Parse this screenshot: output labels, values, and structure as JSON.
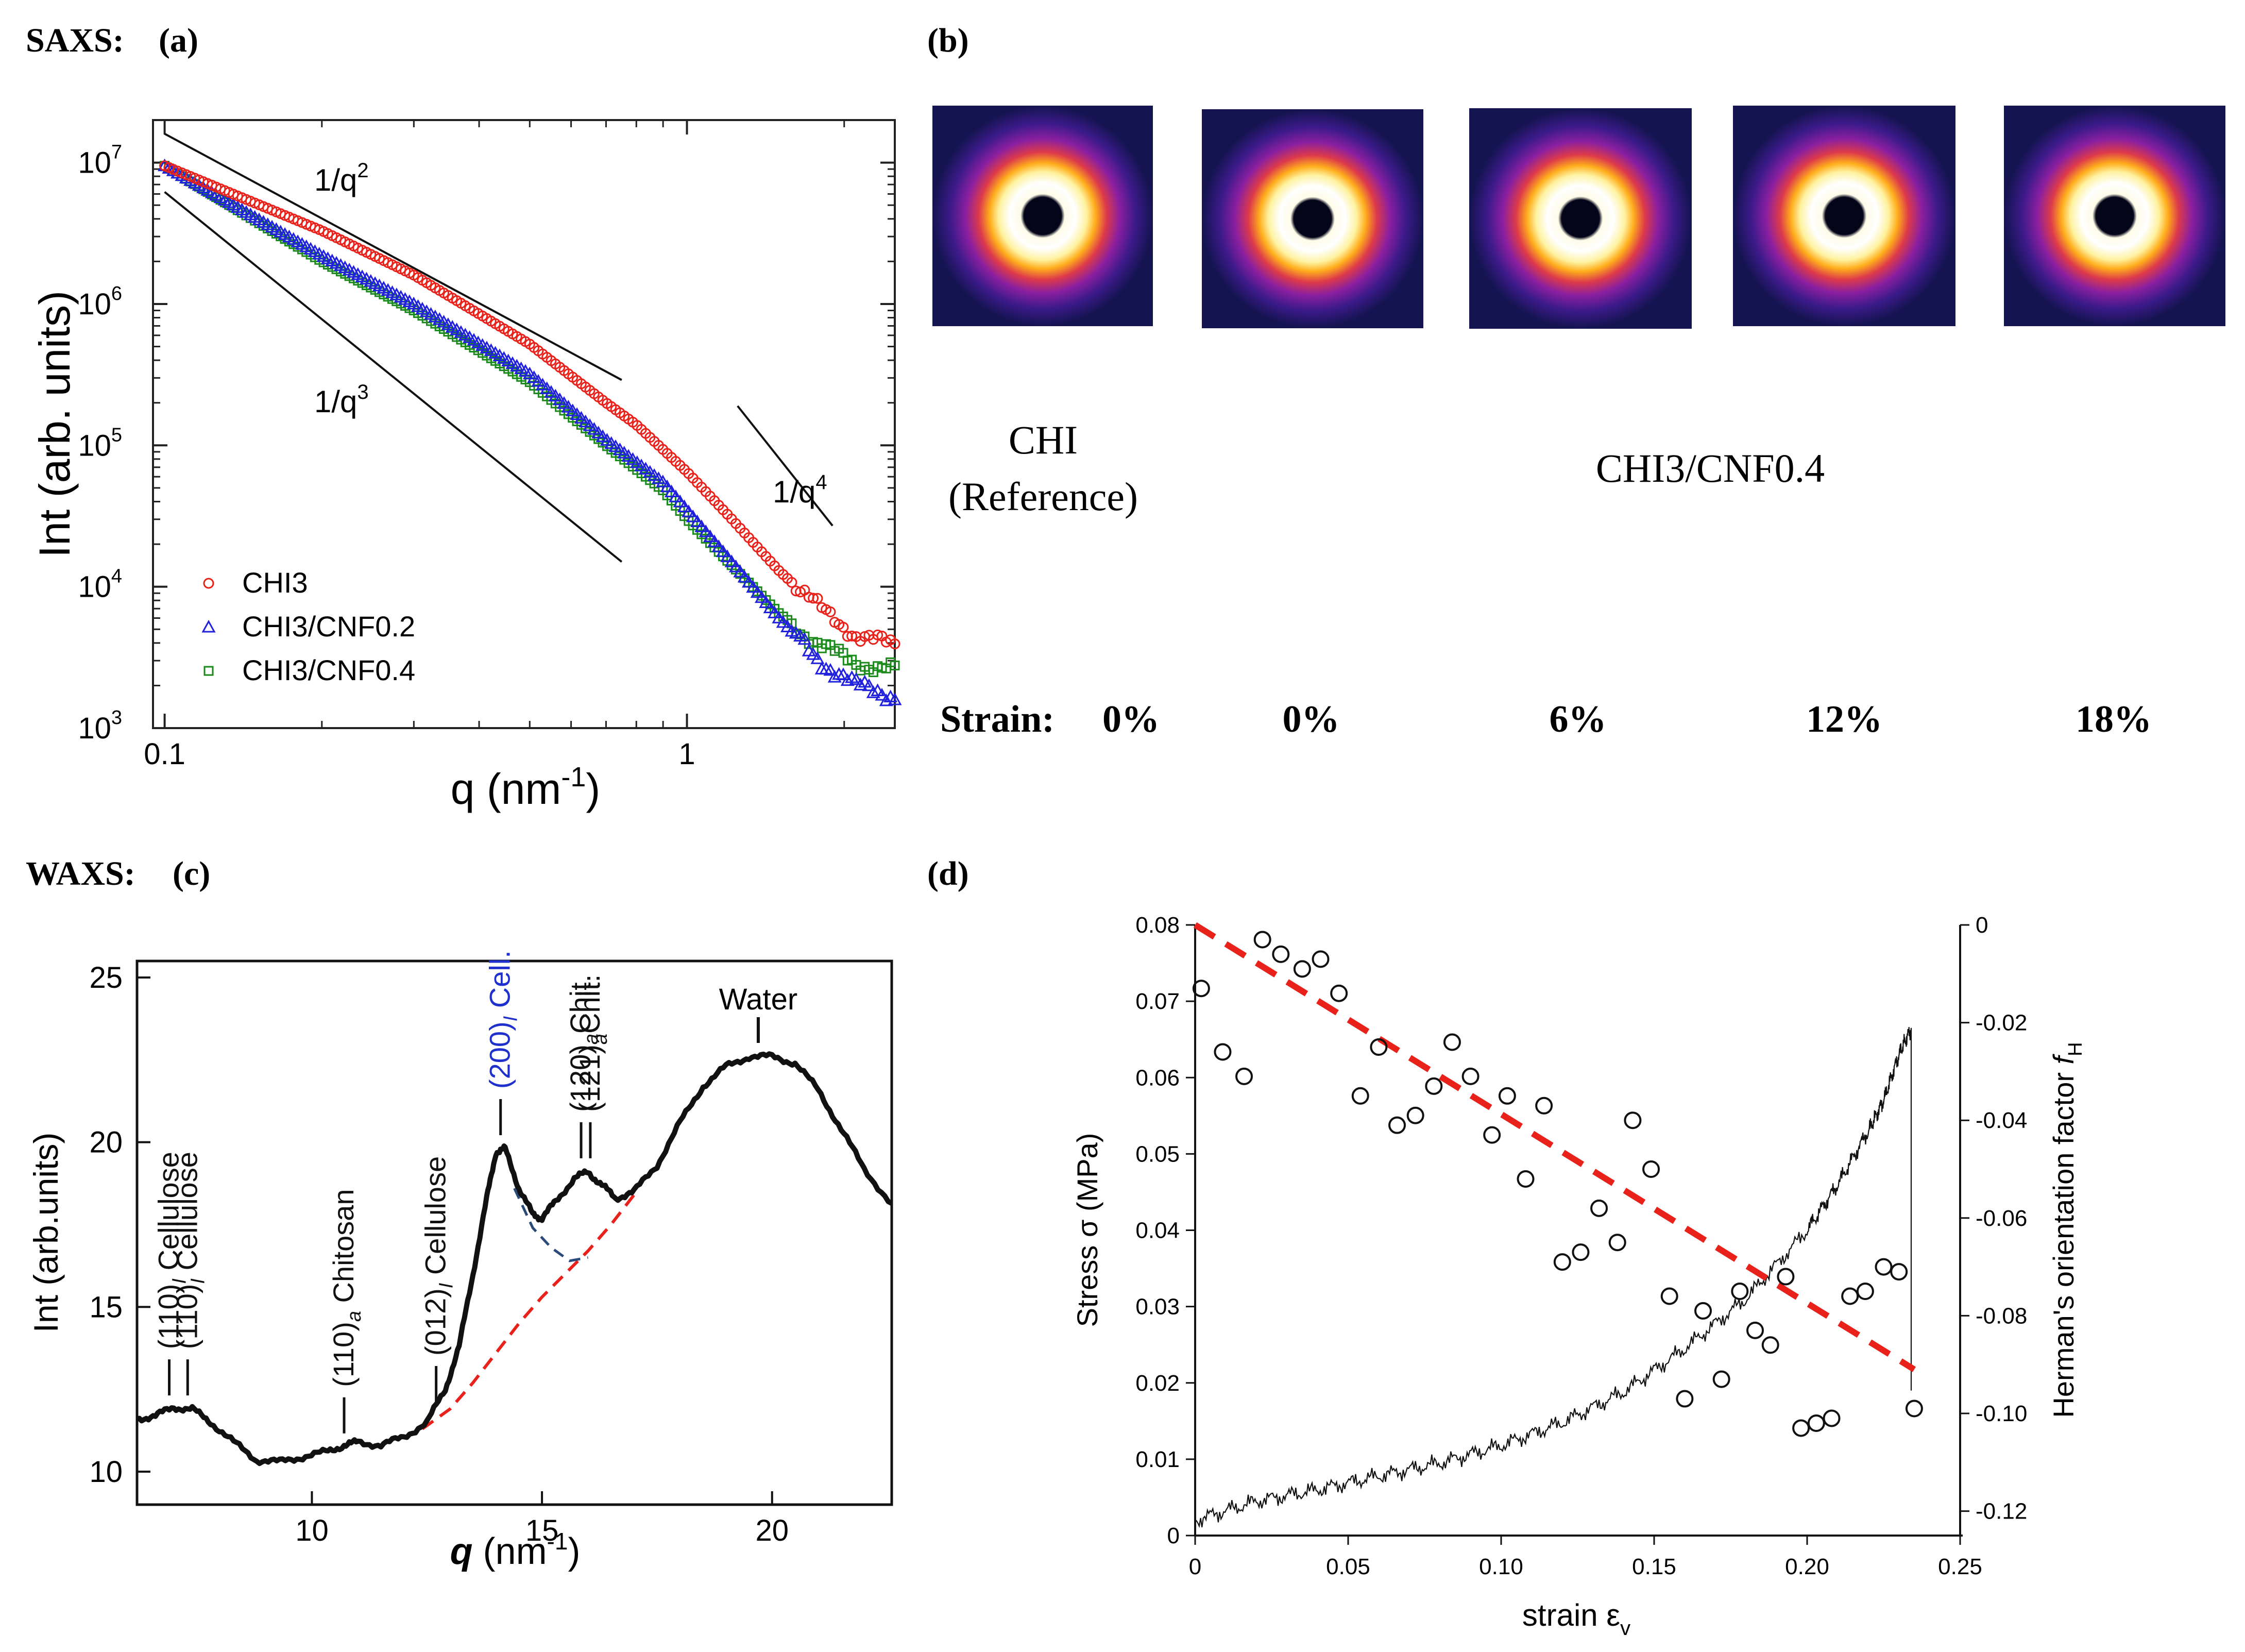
{
  "panels": {
    "saxs_heading": "SAXS:",
    "a": "(a)",
    "b": "(b)",
    "waxs_heading": "WAXS:",
    "c": "(c)",
    "d": "(d)"
  },
  "colors": {
    "chi3": "#e8221a",
    "cnf02": "#2020dd",
    "cnf04": "#1a8a1a",
    "red_dash": "#e8221a",
    "blue_dash": "#2a4a7a"
  },
  "chart_data": [
    {
      "id": "saxs",
      "type": "scatter",
      "xscale": "log",
      "yscale": "log",
      "xlim": [
        0.095,
        2.5
      ],
      "ylim": [
        1000,
        20000000
      ],
      "xlabel": "q (nm",
      "xlabel_sup": "-1",
      "xlabel_end": ")",
      "ylabel": "Int (arb. units)",
      "x_ticks": [
        {
          "v": 0.1,
          "label": "0.1"
        },
        {
          "v": 1,
          "label": "1"
        }
      ],
      "y_ticks": [
        {
          "v": 1000,
          "base": "10",
          "exp": "3"
        },
        {
          "v": 10000,
          "base": "10",
          "exp": "4"
        },
        {
          "v": 100000,
          "base": "10",
          "exp": "5"
        },
        {
          "v": 1000000,
          "base": "10",
          "exp": "6"
        },
        {
          "v": 10000000,
          "base": "10",
          "exp": "7"
        }
      ],
      "series": [
        {
          "name": "CHI3",
          "marker": "circle",
          "points": [
            [
              0.1,
              9500000.0
            ],
            [
              0.2,
              3300000.0
            ],
            [
              0.3,
              1600000.0
            ],
            [
              0.5,
              520000.0
            ],
            [
              0.7,
              200000.0
            ],
            [
              0.8,
              140000.0
            ],
            [
              1.0,
              65000.0
            ],
            [
              1.2,
              32000.0
            ],
            [
              1.5,
              13000.0
            ],
            [
              1.8,
              7000.0
            ],
            [
              2.1,
              4600.0
            ],
            [
              2.5,
              3800.0
            ]
          ]
        },
        {
          "name": "CHI3/CNF0.2",
          "marker": "triangle",
          "points": [
            [
              0.1,
              9500000.0
            ],
            [
              0.2,
              2200000.0
            ],
            [
              0.3,
              1000000.0
            ],
            [
              0.5,
              320000.0
            ],
            [
              0.7,
              110000.0
            ],
            [
              0.9,
              55000.0
            ],
            [
              1.0,
              35000.0
            ],
            [
              1.2,
              16000.0
            ],
            [
              1.5,
              6000.0
            ],
            [
              1.8,
              3000.0
            ],
            [
              2.1,
              2000.0
            ],
            [
              2.5,
              1700.0
            ]
          ]
        },
        {
          "name": "CHI3/CNF0.4",
          "marker": "square",
          "points": [
            [
              0.1,
              9500000.0
            ],
            [
              0.2,
              2000000.0
            ],
            [
              0.3,
              900000.0
            ],
            [
              0.5,
              280000.0
            ],
            [
              0.7,
              100000.0
            ],
            [
              0.9,
              48000.0
            ],
            [
              1.0,
              30000.0
            ],
            [
              1.2,
              15000.0
            ],
            [
              1.5,
              6500.0
            ],
            [
              1.8,
              3800.0
            ],
            [
              2.1,
              2900.0
            ],
            [
              2.5,
              2600.0
            ]
          ]
        }
      ],
      "slope_lines": [
        {
          "label": "1/q",
          "sup": "2",
          "from": [
            0.1,
            16000000.0
          ],
          "to": [
            0.75,
            290000.0
          ]
        },
        {
          "label": "1/q",
          "sup": "3",
          "from": [
            0.1,
            6200000.0
          ],
          "to": [
            0.75,
            15000.0
          ]
        },
        {
          "label": "1/q",
          "sup": "4",
          "from": [
            1.25,
            190000.0
          ],
          "to": [
            1.9,
            27000.0
          ]
        }
      ],
      "legend": [
        "CHI3",
        "CHI3/CNF0.2",
        "CHI3/CNF0.4"
      ]
    },
    {
      "id": "waxs",
      "type": "line",
      "xlim": [
        6.2,
        22.6
      ],
      "ylim": [
        9,
        25.5
      ],
      "xlabel": "q",
      "xlabel_unit": " (nm",
      "xlabel_sup": "-1",
      "xlabel_end": ")",
      "ylabel": "Int (arb.units)",
      "x_ticks": [
        10,
        15,
        20
      ],
      "y_ticks": [
        10,
        15,
        20,
        25
      ],
      "series": [
        {
          "name": "data",
          "points": [
            [
              6.2,
              11.6
            ],
            [
              6.6,
              11.7
            ],
            [
              7.0,
              11.95
            ],
            [
              7.4,
              11.9
            ],
            [
              7.8,
              11.5
            ],
            [
              8.3,
              10.9
            ],
            [
              8.8,
              10.35
            ],
            [
              9.3,
              10.3
            ],
            [
              9.8,
              10.45
            ],
            [
              10.3,
              10.6
            ],
            [
              10.7,
              10.8
            ],
            [
              11.0,
              10.9
            ],
            [
              11.5,
              10.8
            ],
            [
              12.0,
              11.05
            ],
            [
              12.5,
              11.5
            ],
            [
              12.9,
              12.5
            ],
            [
              13.2,
              13.8
            ],
            [
              13.5,
              16.0
            ],
            [
              13.8,
              18.3
            ],
            [
              14.0,
              19.7
            ],
            [
              14.2,
              19.8
            ],
            [
              14.5,
              18.6
            ],
            [
              14.8,
              17.8
            ],
            [
              15.0,
              17.7
            ],
            [
              15.3,
              18.2
            ],
            [
              15.7,
              18.9
            ],
            [
              16.0,
              19.1
            ],
            [
              16.3,
              18.7
            ],
            [
              16.6,
              18.3
            ],
            [
              17.0,
              18.5
            ],
            [
              17.5,
              19.3
            ],
            [
              18.0,
              20.6
            ],
            [
              18.5,
              21.7
            ],
            [
              19.0,
              22.3
            ],
            [
              19.5,
              22.6
            ],
            [
              20.0,
              22.6
            ],
            [
              20.5,
              22.4
            ],
            [
              21.0,
              21.6
            ],
            [
              21.5,
              20.4
            ],
            [
              22.0,
              19.2
            ],
            [
              22.6,
              18.1
            ]
          ]
        }
      ],
      "fits": [
        {
          "name": "red-baseline",
          "points": [
            [
              12.4,
              11.3
            ],
            [
              13.0,
              11.9
            ],
            [
              13.5,
              12.7
            ],
            [
              14.0,
              13.6
            ],
            [
              14.5,
              14.5
            ],
            [
              15.0,
              15.3
            ],
            [
              15.5,
              16.0
            ],
            [
              16.0,
              16.7
            ],
            [
              16.5,
              17.5
            ],
            [
              17.0,
              18.4
            ]
          ]
        },
        {
          "name": "blue-fit",
          "points": [
            [
              14.4,
              18.6
            ],
            [
              14.8,
              17.4
            ],
            [
              15.2,
              16.8
            ],
            [
              15.6,
              16.4
            ],
            [
              16.0,
              16.5
            ]
          ]
        }
      ],
      "peak_labels": [
        {
          "q": 6.9,
          "tick_y": 12.0,
          "main": "(110)",
          "sub": "I",
          "suffix": " Cellulose",
          "color": "#111111"
        },
        {
          "q": 7.3,
          "tick_y": 12.0,
          "main": "(110)",
          "sub": "I",
          "suffix": " Cellulose",
          "color": "#111111"
        },
        {
          "q": 10.7,
          "tick_y": 10.85,
          "main": "(110)",
          "sub": "a",
          "suffix": " Chitosan",
          "color": "#111111"
        },
        {
          "q": 12.7,
          "tick_y": 11.8,
          "main": "(012)",
          "sub": "I",
          "suffix": " Cellulose",
          "color": "#111111"
        },
        {
          "q": 14.1,
          "tick_y": 19.9,
          "main": "(200)",
          "sub": "I",
          "suffix": " Cell.",
          "color": "#2030cc"
        },
        {
          "q": 15.85,
          "tick_y": 19.2,
          "main": "(120)",
          "sub": "a",
          "suffix": "Chit.",
          "color": "#111111"
        },
        {
          "q": 16.05,
          "tick_y": 19.2,
          "main": "(121)",
          "sub": "a",
          "suffix": "Chit.",
          "color": "#111111"
        }
      ],
      "water_label": "Water",
      "water_q": 19.7
    },
    {
      "id": "stress",
      "type": "line",
      "xlim": [
        0,
        0.25
      ],
      "ylim_left": [
        0,
        0.08
      ],
      "ylim_right": [
        -0.125,
        0
      ],
      "xlabel": "strain ε",
      "xlabel_sub": "v",
      "ylabel_left": "Stress σ (MPa)",
      "ylabel_right": "Herman's orientation factor ",
      "ylabel_right_f": "f",
      "ylabel_right_sub": "H",
      "x_ticks": [
        {
          "v": 0,
          "l": "0"
        },
        {
          "v": 0.05,
          "l": "0.05"
        },
        {
          "v": 0.1,
          "l": "0.10"
        },
        {
          "v": 0.15,
          "l": "0.15"
        },
        {
          "v": 0.2,
          "l": "0.20"
        },
        {
          "v": 0.25,
          "l": "0.25"
        }
      ],
      "y_ticks_left": [
        {
          "v": 0,
          "l": "0"
        },
        {
          "v": 0.01,
          "l": "0.01"
        },
        {
          "v": 0.02,
          "l": "0.02"
        },
        {
          "v": 0.03,
          "l": "0.03"
        },
        {
          "v": 0.04,
          "l": "0.04"
        },
        {
          "v": 0.05,
          "l": "0.05"
        },
        {
          "v": 0.06,
          "l": "0.06"
        },
        {
          "v": 0.07,
          "l": "0.07"
        },
        {
          "v": 0.08,
          "l": "0.08"
        }
      ],
      "y_ticks_right": [
        {
          "v": 0,
          "l": "0"
        },
        {
          "v": -0.02,
          "l": "-0.02"
        },
        {
          "v": -0.04,
          "l": "-0.04"
        },
        {
          "v": -0.06,
          "l": "-0.06"
        },
        {
          "v": -0.08,
          "l": "-0.08"
        },
        {
          "v": -0.1,
          "l": "-0.10"
        },
        {
          "v": -0.12,
          "l": "-0.12"
        }
      ],
      "stress_curve": [
        [
          0,
          0.002
        ],
        [
          0.02,
          0.0045
        ],
        [
          0.04,
          0.006
        ],
        [
          0.06,
          0.0078
        ],
        [
          0.08,
          0.0095
        ],
        [
          0.1,
          0.0118
        ],
        [
          0.12,
          0.0148
        ],
        [
          0.14,
          0.0188
        ],
        [
          0.16,
          0.0245
        ],
        [
          0.18,
          0.031
        ],
        [
          0.2,
          0.04
        ],
        [
          0.21,
          0.046
        ],
        [
          0.22,
          0.053
        ],
        [
          0.225,
          0.057
        ],
        [
          0.23,
          0.063
        ],
        [
          0.234,
          0.0665
        ],
        [
          0.234,
          0.019
        ]
      ],
      "herman_points": [
        [
          0.002,
          -0.013
        ],
        [
          0.009,
          -0.026
        ],
        [
          0.016,
          -0.031
        ],
        [
          0.022,
          -0.003
        ],
        [
          0.028,
          -0.006
        ],
        [
          0.035,
          -0.009
        ],
        [
          0.041,
          -0.007
        ],
        [
          0.047,
          -0.014
        ],
        [
          0.054,
          -0.035
        ],
        [
          0.06,
          -0.025
        ],
        [
          0.066,
          -0.041
        ],
        [
          0.072,
          -0.039
        ],
        [
          0.078,
          -0.033
        ],
        [
          0.084,
          -0.024
        ],
        [
          0.09,
          -0.031
        ],
        [
          0.097,
          -0.043
        ],
        [
          0.102,
          -0.035
        ],
        [
          0.108,
          -0.052
        ],
        [
          0.114,
          -0.037
        ],
        [
          0.12,
          -0.069
        ],
        [
          0.126,
          -0.067
        ],
        [
          0.132,
          -0.058
        ],
        [
          0.138,
          -0.065
        ],
        [
          0.143,
          -0.04
        ],
        [
          0.149,
          -0.05
        ],
        [
          0.155,
          -0.076
        ],
        [
          0.16,
          -0.097
        ],
        [
          0.166,
          -0.079
        ],
        [
          0.172,
          -0.093
        ],
        [
          0.178,
          -0.075
        ],
        [
          0.183,
          -0.083
        ],
        [
          0.188,
          -0.086
        ],
        [
          0.193,
          -0.072
        ],
        [
          0.198,
          -0.103
        ],
        [
          0.203,
          -0.102
        ],
        [
          0.208,
          -0.101
        ],
        [
          0.214,
          -0.076
        ],
        [
          0.219,
          -0.075
        ],
        [
          0.225,
          -0.07
        ],
        [
          0.23,
          -0.071
        ],
        [
          0.235,
          -0.099
        ]
      ],
      "herman_fit": [
        [
          0,
          0
        ],
        [
          0.235,
          -0.091
        ]
      ]
    }
  ],
  "images": {
    "labels": [
      "CHI",
      "(Reference)",
      "CHI3/CNF0.4"
    ],
    "strain_prefix": "Strain:",
    "strains": [
      "0%",
      "0%",
      "6%",
      "12%",
      "18%"
    ]
  }
}
